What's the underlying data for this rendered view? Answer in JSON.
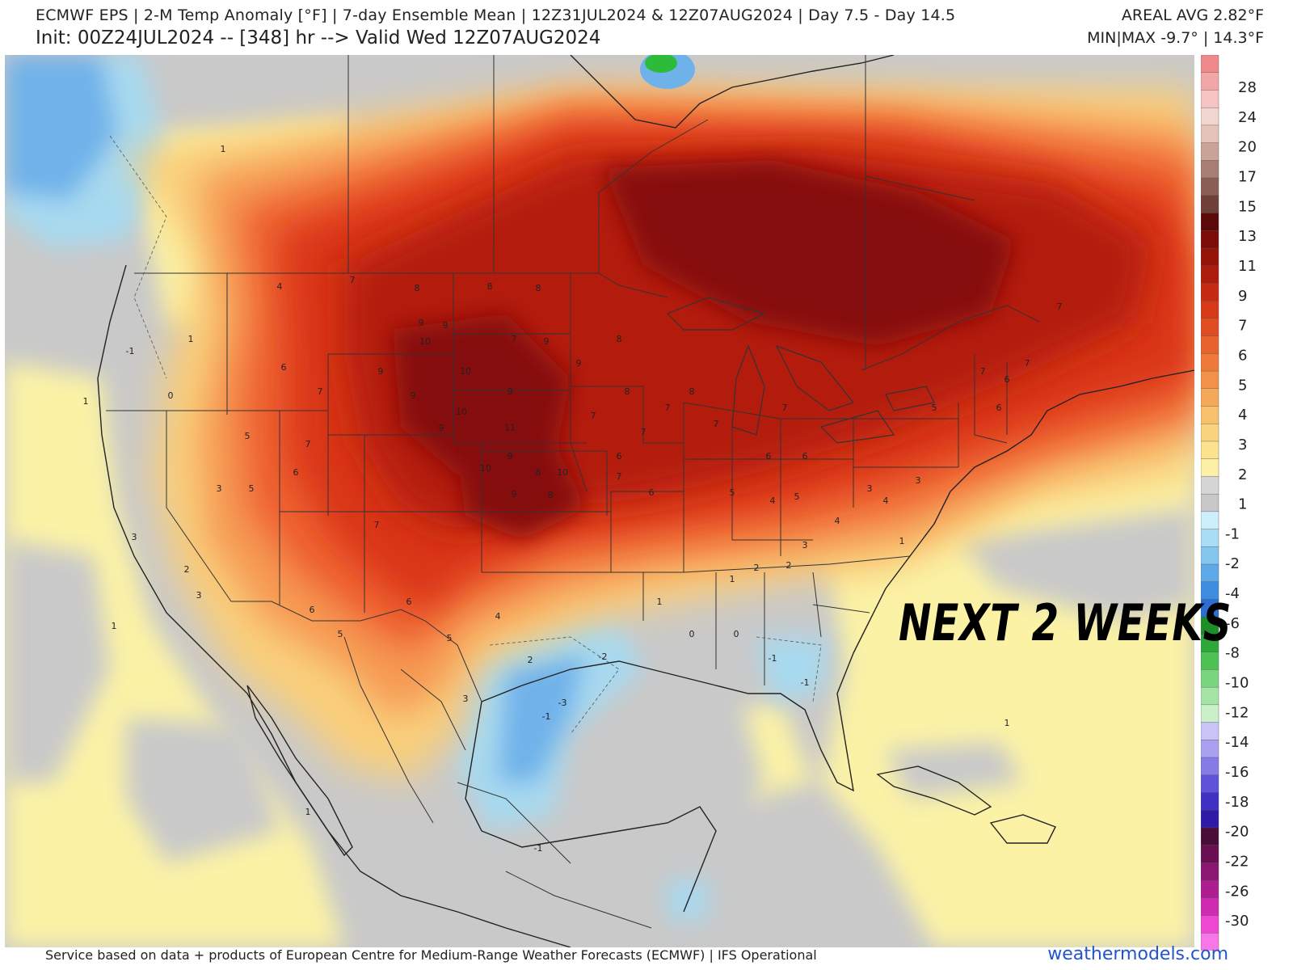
{
  "header": {
    "line1": "ECMWF EPS | 2-M Temp Anomaly [°F] | 7-day Ensemble Mean | 12Z31JUL2024 & 12Z07AUG2024 | Day 7.5 - Day 14.5",
    "line2": "Init: 00Z24JUL2024 -- [348] hr --> Valid Wed 12Z07AUG2024",
    "areal_avg": "AREAL AVG 2.82°F",
    "minmax": "MIN|MAX -9.7° | 14.3°F"
  },
  "overlay_text": "NEXT 2 WEEKS",
  "footer": {
    "credit": "Service based on data + products of European Centre for Medium-Range Weather Forecasts (ECMWF) | IFS Operational",
    "site": "weathermodels.com"
  },
  "colors": {
    "ocean_neutral": "#c9c9c9",
    "warm_1": "#fbf2a6",
    "warm_2": "#f9cf7c",
    "warm_3": "#f69a52",
    "warm_4": "#ee6030",
    "warm_5": "#d93618",
    "warm_6": "#b31a0e",
    "warm_7": "#861008",
    "cool_1": "#a7d9ef",
    "cool_2": "#6fb2ea",
    "cool_3": "#3f87e0",
    "green": "#2fbb3a",
    "border": "#333333"
  },
  "legend": {
    "labels": [
      "28",
      "24",
      "20",
      "17",
      "15",
      "13",
      "11",
      "9",
      "7",
      "6",
      "5",
      "4",
      "3",
      "2",
      "1",
      "-1",
      "-2",
      "-4",
      "-6",
      "-8",
      "-10",
      "-12",
      "-14",
      "-16",
      "-18",
      "-20",
      "-22",
      "-26",
      "-30"
    ],
    "colors": [
      "#f08a8a",
      "#f3a6a6",
      "#f6c3c3",
      "#f1d6d0",
      "#e6c3b8",
      "#c9a396",
      "#a97e72",
      "#8a5e54",
      "#6e4038",
      "#5a0a08",
      "#7a0d08",
      "#941408",
      "#ad1c0c",
      "#c52a12",
      "#d63818",
      "#e14d22",
      "#e8632c",
      "#ee7a3a",
      "#f19248",
      "#f4a958",
      "#f7c06a",
      "#f9d47c",
      "#fbe38f",
      "#fdf0a6",
      "#d6d6d6",
      "#c8c8c8",
      "#cdeefb",
      "#a9dcf5",
      "#85c6ef",
      "#5eaae8",
      "#3f8ddf",
      "#2c6fd3",
      "#1c8f2a",
      "#2fa83a",
      "#4dc154",
      "#79d57e",
      "#a4e4a6",
      "#c9f0c9",
      "#c8c4f6",
      "#a9a1ef",
      "#857ae6",
      "#5f53d9",
      "#4030c4",
      "#2d1ba8",
      "#4a0d3a",
      "#6a1052",
      "#8b1670",
      "#ad1f90",
      "#d02cb2",
      "#ee48d2",
      "#f777e6"
    ]
  },
  "map_labels": [
    {
      "v": "7"
    },
    {
      "v": "8"
    },
    {
      "v": "9"
    },
    {
      "v": "10"
    },
    {
      "v": "11"
    },
    {
      "v": "6"
    },
    {
      "v": "5"
    },
    {
      "v": "4"
    },
    {
      "v": "3"
    },
    {
      "v": "2"
    },
    {
      "v": "1"
    },
    {
      "v": "0"
    },
    {
      "v": "-1"
    },
    {
      "v": "-2"
    },
    {
      "v": "-3"
    }
  ]
}
